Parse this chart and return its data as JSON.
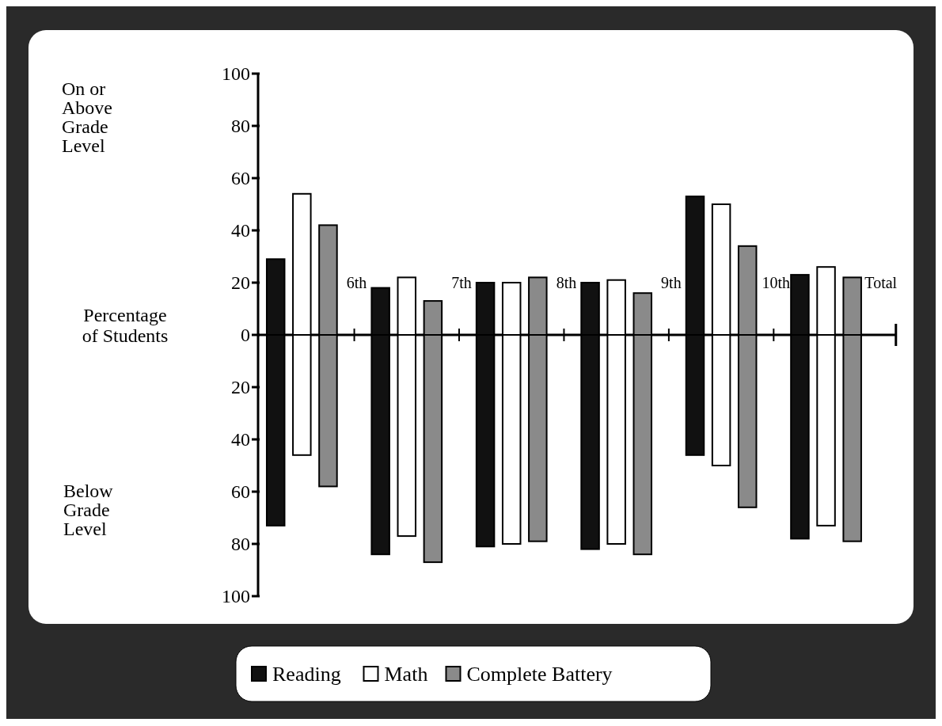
{
  "chart_data": {
    "type": "bar",
    "stacked": true,
    "ylabel": "Percentage of Students",
    "annotations": [
      "On or Above Grade Level",
      "Below Grade Level"
    ],
    "categories": [
      null,
      null,
      null,
      "6th",
      null,
      null,
      null,
      "7th",
      null,
      null,
      null,
      "8th",
      null,
      null,
      null,
      "9th",
      null,
      null,
      null,
      "10th",
      null,
      null,
      null,
      "Total"
    ],
    "series": [
      {
        "name": "Reading",
        "color": "#111111",
        "values": [
          29,
          null,
          null,
          null,
          18,
          null,
          null,
          null,
          20,
          null,
          null,
          null,
          20,
          null,
          null,
          null,
          53,
          null,
          null,
          null,
          23,
          null,
          null,
          null
        ]
      },
      {
        "color": "#111111",
        "values": [
          -73,
          null,
          null,
          null,
          -84,
          null,
          null,
          null,
          -81,
          null,
          null,
          null,
          -82,
          null,
          null,
          null,
          -46,
          null,
          null,
          null,
          -78,
          null,
          null,
          null
        ]
      },
      {
        "name": "Math",
        "color": "#ffffff",
        "values": [
          null,
          54,
          null,
          null,
          null,
          22,
          null,
          null,
          null,
          20,
          null,
          null,
          null,
          21,
          null,
          null,
          null,
          50,
          null,
          null,
          null,
          26,
          null,
          null
        ]
      },
      {
        "color": "#ffffff",
        "values": [
          null,
          -46,
          null,
          null,
          null,
          -77,
          null,
          null,
          null,
          -80,
          null,
          null,
          null,
          -80,
          null,
          null,
          null,
          -50,
          null,
          null,
          null,
          -73,
          null,
          null
        ]
      },
      {
        "name": "Complete Battery",
        "color": "#8a8a8a",
        "values": [
          null,
          null,
          42,
          null,
          null,
          null,
          13,
          null,
          null,
          null,
          22,
          null,
          null,
          null,
          16,
          null,
          null,
          null,
          34,
          null,
          null,
          null,
          22,
          null
        ]
      },
      {
        "color": "#8a8a8a",
        "values": [
          null,
          null,
          -58,
          null,
          null,
          null,
          -87,
          null,
          null,
          null,
          -79,
          null,
          null,
          null,
          -84,
          null,
          null,
          null,
          -66,
          null,
          null,
          null,
          -79,
          null
        ]
      }
    ],
    "ylim": [
      -100,
      100
    ],
    "yticks": [
      {
        "value": 100,
        "label": "100"
      },
      {
        "value": 80,
        "label": "80"
      },
      {
        "value": 60,
        "label": "60"
      },
      {
        "value": 40,
        "label": "40"
      },
      {
        "value": 20,
        "label": "20"
      },
      0,
      {
        "value": -20,
        "label": "20"
      },
      {
        "value": -40,
        "label": "40"
      },
      {
        "value": -60,
        "label": "60"
      },
      {
        "value": -80,
        "label": "80"
      },
      {
        "value": -100,
        "label": "100"
      }
    ],
    "legend": "bottom"
  }
}
